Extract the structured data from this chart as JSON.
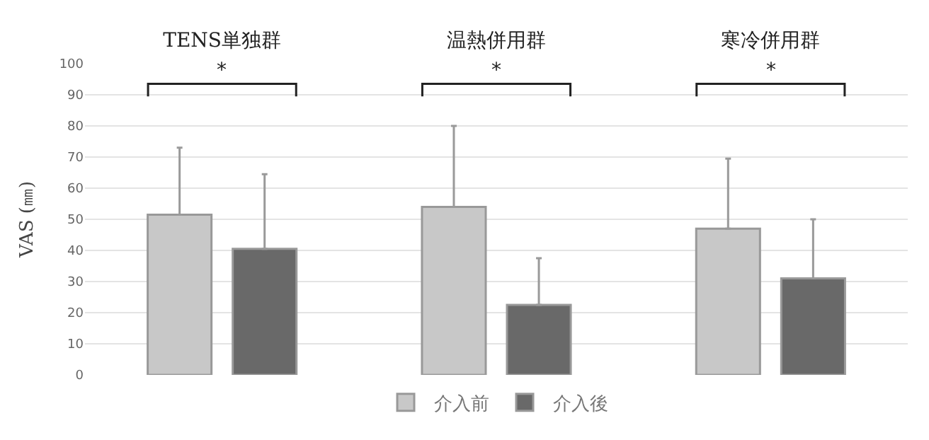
{
  "chart_data": {
    "type": "bar",
    "ylabel": "VAS (㎜)",
    "categories": [
      "TENS単独群",
      "温熱併用群",
      "寒冷併用群"
    ],
    "series": [
      {
        "name": "介入前",
        "color": "#c8c8c8",
        "values": [
          51.5,
          54,
          47
        ],
        "errors": [
          [
            51.5,
            73
          ],
          [
            54,
            80
          ],
          [
            47,
            69.5
          ]
        ]
      },
      {
        "name": "介入後",
        "color": "#696969",
        "values": [
          40.5,
          22.5,
          31
        ],
        "errors": [
          [
            40.5,
            64.5
          ],
          [
            22.5,
            37.5
          ],
          [
            31,
            50
          ]
        ]
      }
    ],
    "ylim": [
      0,
      100
    ],
    "yticks": [
      0,
      10,
      20,
      30,
      40,
      50,
      60,
      70,
      80,
      90,
      100
    ],
    "annotations": [
      "*",
      "*",
      "*"
    ],
    "grid": "y",
    "legend": "bottom"
  }
}
